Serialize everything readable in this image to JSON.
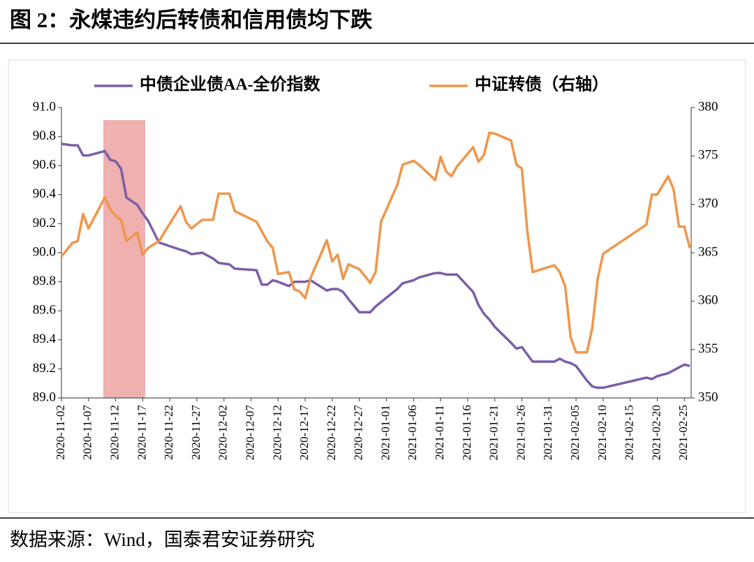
{
  "title": "图 2：永煤违约后转债和信用债均下跌",
  "source": "数据来源：Wind，国泰君安证券研究",
  "chart_data": {
    "type": "line",
    "x": [
      "2020-11-02",
      "2020-11-04",
      "2020-11-05",
      "2020-11-06",
      "2020-11-07",
      "2020-11-10",
      "2020-11-11",
      "2020-11-12",
      "2020-11-13",
      "2020-11-14",
      "2020-11-16",
      "2020-11-17",
      "2020-11-18",
      "2020-11-20",
      "2020-11-24",
      "2020-11-25",
      "2020-11-26",
      "2020-11-28",
      "2020-11-30",
      "2020-12-01",
      "2020-12-03",
      "2020-12-04",
      "2020-12-08",
      "2020-12-09",
      "2020-12-10",
      "2020-12-11",
      "2020-12-12",
      "2020-12-14",
      "2020-12-15",
      "2020-12-16",
      "2020-12-17",
      "2020-12-18",
      "2020-12-21",
      "2020-12-22",
      "2020-12-23",
      "2020-12-24",
      "2020-12-25",
      "2020-12-27",
      "2020-12-29",
      "2020-12-30",
      "2020-12-31",
      "2021-01-03",
      "2021-01-04",
      "2021-01-06",
      "2021-01-07",
      "2021-01-10",
      "2021-01-11",
      "2021-01-12",
      "2021-01-13",
      "2021-01-14",
      "2021-01-17",
      "2021-01-18",
      "2021-01-19",
      "2021-01-20",
      "2021-01-21",
      "2021-01-24",
      "2021-01-25",
      "2021-01-26",
      "2021-01-27",
      "2021-01-28",
      "2021-02-01",
      "2021-02-02",
      "2021-02-03",
      "2021-02-04",
      "2021-02-05",
      "2021-02-07",
      "2021-02-08",
      "2021-02-09",
      "2021-02-10",
      "2021-02-18",
      "2021-02-19",
      "2021-02-20",
      "2021-02-22",
      "2021-02-23",
      "2021-02-24",
      "2021-02-25",
      "2021-02-26"
    ],
    "series": [
      {
        "name": "中债企业债AA-全价指数",
        "color": "#7b5ea7",
        "values": [
          90.75,
          90.74,
          90.74,
          90.67,
          90.67,
          90.7,
          90.64,
          90.63,
          90.58,
          90.38,
          90.33,
          90.27,
          90.22,
          90.07,
          90.02,
          90.01,
          89.99,
          90.0,
          89.96,
          89.93,
          89.92,
          89.89,
          89.88,
          89.78,
          89.78,
          89.81,
          89.8,
          89.77,
          89.8,
          89.8,
          89.8,
          89.81,
          89.74,
          89.75,
          89.75,
          89.73,
          89.68,
          89.59,
          89.59,
          89.63,
          89.66,
          89.75,
          89.79,
          89.81,
          89.83,
          89.86,
          89.86,
          89.85,
          89.85,
          89.85,
          89.73,
          89.64,
          89.58,
          89.54,
          89.49,
          89.38,
          89.34,
          89.35,
          89.3,
          89.25,
          89.25,
          89.27,
          89.25,
          89.24,
          89.22,
          89.12,
          89.08,
          89.07,
          89.07,
          89.14,
          89.13,
          89.15,
          89.17,
          89.19,
          89.21,
          89.23,
          89.22
        ]
      },
      {
        "name": "中证转债（右轴）",
        "color": "#f0954a",
        "axis": "y2",
        "values": [
          364.6,
          366.0,
          366.2,
          369.0,
          367.5,
          370.7,
          369.5,
          368.8,
          368.4,
          366.2,
          367.1,
          364.8,
          365.5,
          366.2,
          369.8,
          368.2,
          367.5,
          368.4,
          368.4,
          371.1,
          371.1,
          369.3,
          368.2,
          367.2,
          366.2,
          365.5,
          362.8,
          363.0,
          361.2,
          361.0,
          360.3,
          362.4,
          366.3,
          364.1,
          364.8,
          362.3,
          363.8,
          363.3,
          361.9,
          363.0,
          368.2,
          372.0,
          374.1,
          374.5,
          374.1,
          372.5,
          374.9,
          373.4,
          372.9,
          373.9,
          375.9,
          374.4,
          375.1,
          377.4,
          377.3,
          376.6,
          374.1,
          373.7,
          367.3,
          363.0,
          363.7,
          363.0,
          361.5,
          356.3,
          354.7,
          354.7,
          357.2,
          362.3,
          364.9,
          367.9,
          371.0,
          371.0,
          372.9,
          371.6,
          367.7,
          367.7,
          365.5
        ]
      }
    ],
    "xlim": [
      "2020-11-02",
      "2021-02-26"
    ],
    "xticks": [
      "2020-11-02",
      "2020-11-07",
      "2020-11-12",
      "2020-11-17",
      "2020-11-22",
      "2020-11-27",
      "2020-12-02",
      "2020-12-07",
      "2020-12-12",
      "2020-12-17",
      "2020-12-22",
      "2020-12-27",
      "2021-01-01",
      "2021-01-06",
      "2021-01-11",
      "2021-01-16",
      "2021-01-21",
      "2021-01-26",
      "2021-01-31",
      "2021-02-05",
      "2021-02-10",
      "2021-02-15",
      "2021-02-20",
      "2021-02-25"
    ],
    "ylim": [
      89,
      91
    ],
    "yticks": [
      {
        "value": 89,
        "label": "89.0"
      },
      89.2,
      89.4,
      89.6,
      89.8,
      {
        "value": 90,
        "label": "90.0"
      },
      90.2,
      90.4,
      90.6,
      90.8,
      {
        "value": 91,
        "label": "91.0"
      }
    ],
    "y2lim": [
      350,
      380
    ],
    "y2ticks": [
      350,
      355,
      360,
      365,
      370,
      375,
      380
    ],
    "grid": false,
    "legend": "top"
  }
}
